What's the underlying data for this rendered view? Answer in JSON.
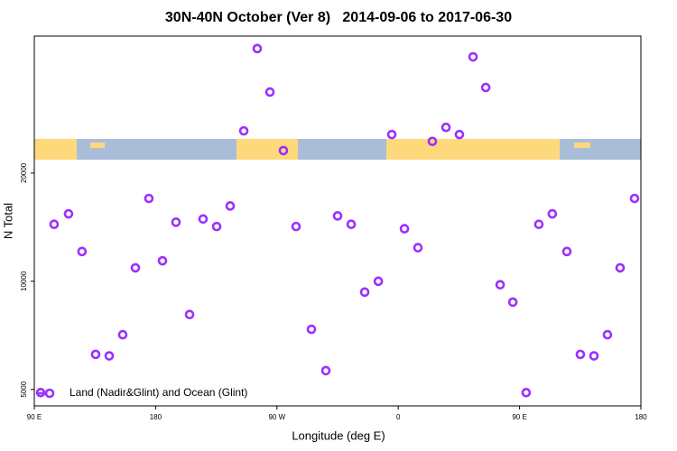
{
  "chart_data": {
    "type": "scatter",
    "title": "30N-40N October (Ver 8)   2014-09-06 to 2017-06-30",
    "x_label": "Longitude (deg E)",
    "y_label": "N Total",
    "xlim": [
      90,
      540
    ],
    "xticks": [
      {
        "value": 90,
        "label": "90 E"
      },
      180,
      {
        "value": 270,
        "label": "90 W"
      },
      {
        "value": 360,
        "label": "0"
      },
      {
        "value": 450,
        "label": "90 E"
      },
      {
        "value": 540,
        "label": "180"
      }
    ],
    "ylim": [
      4500,
      48100
    ],
    "yticks": [
      5000,
      10000,
      20000
    ],
    "ylog": true,
    "legend": "bottom-left",
    "series": [
      {
        "name": "Land (Nadir&Glint) and Ocean (Glint)",
        "color": "#9b30ff",
        "x": [
          94.7,
          104.7,
          115.4,
          125.4,
          135.5,
          145.6,
          155.6,
          165,
          175,
          185.1,
          195.1,
          205.2,
          215.2,
          225.3,
          235.3,
          245.4,
          255.4,
          264.8,
          274.8,
          284.2,
          295.6,
          306.3,
          315,
          325.1,
          335.1,
          345.2,
          355.2,
          364.6,
          374.6,
          385.3,
          395.4,
          405.4,
          415.5,
          424.9,
          435.6,
          445,
          454.9,
          464.3,
          474.3,
          485.1,
          495.1,
          505.2,
          515.2,
          524.6,
          535.3
        ],
        "values": [
          4900,
          14400,
          15400,
          12100,
          6260,
          6200,
          7100,
          10900,
          17000,
          11400,
          14600,
          8080,
          14900,
          14200,
          16200,
          26200,
          44400,
          33600,
          23100,
          14200,
          7350,
          5640,
          15200,
          14400,
          9330,
          10000,
          25600,
          14000,
          12400,
          24500,
          26800,
          25600,
          42100,
          34600,
          9780,
          8750,
          4900,
          14400,
          15400,
          12100,
          6260,
          6200,
          7100,
          10900,
          17000
        ]
      }
    ]
  }
}
